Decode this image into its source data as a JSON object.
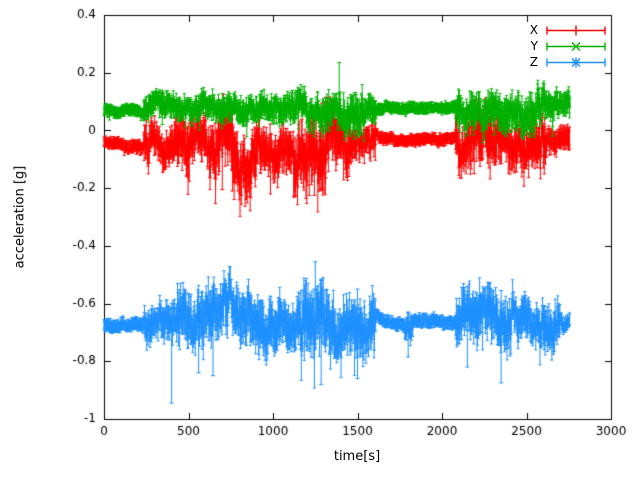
{
  "chart_data": {
    "type": "line",
    "title": "",
    "xlabel": "time[s]",
    "ylabel": "acceleration [g]",
    "xlim": [
      0,
      3000
    ],
    "ylim": [
      -1,
      0.4
    ],
    "xticks": [
      0,
      500,
      1000,
      1500,
      2000,
      2500,
      3000
    ],
    "xtick_labels": [
      "0",
      "500",
      "1000",
      "1500",
      "2000",
      "2500",
      "3000"
    ],
    "yticks": [
      -1,
      -0.8,
      -0.6,
      -0.4,
      -0.2,
      0,
      0.2,
      0.4
    ],
    "ytick_labels": [
      "-1",
      "-0.8",
      "-0.6",
      "-0.4",
      "-0.2",
      "0",
      "0.2",
      "0.4"
    ],
    "grid": false,
    "legend_position": "top-right",
    "plot_style": "errorbars",
    "envelope_format": "[t_start_s, t_end_s, mean_g, noise_amplitude_g]",
    "spike_format": "[t_s, low_g, high_g]",
    "series": [
      {
        "name": "X",
        "color": "#ff0000",
        "marker": "plus",
        "t_end": 2755,
        "envelope": [
          [
            0,
            120,
            -0.04,
            0.01
          ],
          [
            120,
            235,
            -0.052,
            0.012
          ],
          [
            235,
            420,
            -0.048,
            0.045
          ],
          [
            420,
            650,
            -0.055,
            0.06
          ],
          [
            650,
            900,
            -0.065,
            0.075
          ],
          [
            900,
            1120,
            -0.05,
            0.055
          ],
          [
            1120,
            1330,
            -0.075,
            0.085
          ],
          [
            1330,
            1460,
            -0.06,
            0.07
          ],
          [
            1460,
            1610,
            -0.045,
            0.04
          ],
          [
            1610,
            2080,
            -0.03,
            0.01
          ],
          [
            2080,
            2330,
            -0.05,
            0.065
          ],
          [
            2330,
            2620,
            -0.05,
            0.055
          ],
          [
            2620,
            2756,
            -0.038,
            0.028
          ]
        ],
        "spikes": [
          [
            490,
            -0.155,
            -0.01
          ],
          [
            700,
            -0.205,
            -0.03
          ],
          [
            760,
            -0.21,
            -0.04
          ],
          [
            1245,
            -0.225,
            -0.03
          ],
          [
            1290,
            -0.2,
            0.095
          ],
          [
            1312,
            -0.165,
            0.115
          ],
          [
            2190,
            -0.15,
            -0.01
          ],
          [
            2480,
            -0.145,
            0.0
          ],
          [
            2600,
            -0.13,
            0.01
          ]
        ]
      },
      {
        "name": "Y",
        "color": "#00b000",
        "marker": "cross",
        "t_end": 2758,
        "envelope": [
          [
            0,
            235,
            0.068,
            0.01
          ],
          [
            235,
            700,
            0.085,
            0.028
          ],
          [
            700,
            1120,
            0.082,
            0.032
          ],
          [
            1120,
            1380,
            0.075,
            0.038
          ],
          [
            1380,
            1540,
            0.05,
            0.05
          ],
          [
            1540,
            1610,
            0.07,
            0.03
          ],
          [
            1610,
            2080,
            0.08,
            0.01
          ],
          [
            2080,
            2330,
            0.075,
            0.042
          ],
          [
            2330,
            2620,
            0.07,
            0.045
          ],
          [
            2620,
            2758,
            0.085,
            0.03
          ]
        ],
        "spikes": [
          [
            345,
            0.02,
            0.125
          ],
          [
            1392,
            0.13,
            0.235
          ],
          [
            1455,
            -0.02,
            0.08
          ],
          [
            1480,
            -0.03,
            0.07
          ],
          [
            2310,
            -0.015,
            0.085
          ],
          [
            2525,
            -0.005,
            0.1
          ],
          [
            2655,
            -0.02,
            0.09
          ]
        ]
      },
      {
        "name": "Z",
        "color": "#1e90ff",
        "marker": "star",
        "t_end": 2755,
        "envelope": [
          [
            0,
            235,
            -0.672,
            0.012
          ],
          [
            235,
            430,
            -0.668,
            0.045
          ],
          [
            430,
            700,
            -0.66,
            0.065
          ],
          [
            700,
            950,
            -0.645,
            0.07
          ],
          [
            950,
            1150,
            -0.665,
            0.06
          ],
          [
            1150,
            1360,
            -0.675,
            0.085
          ],
          [
            1360,
            1610,
            -0.665,
            0.07
          ],
          [
            1610,
            1780,
            -0.67,
            0.012
          ],
          [
            1780,
            1830,
            -0.69,
            0.03
          ],
          [
            1830,
            2080,
            -0.668,
            0.012
          ],
          [
            2080,
            2420,
            -0.65,
            0.065
          ],
          [
            2420,
            2700,
            -0.655,
            0.055
          ],
          [
            2700,
            2756,
            -0.668,
            0.018
          ]
        ],
        "spikes": [
          [
            400,
            -0.945,
            -0.6
          ],
          [
            560,
            -0.84,
            -0.56
          ],
          [
            645,
            -0.85,
            -0.545
          ],
          [
            1250,
            -0.74,
            -0.455
          ],
          [
            1285,
            -0.88,
            -0.52
          ],
          [
            1500,
            -0.86,
            -0.55
          ],
          [
            1800,
            -0.785,
            -0.63
          ],
          [
            2150,
            -0.82,
            -0.54
          ],
          [
            2350,
            -0.875,
            -0.555
          ]
        ]
      }
    ]
  }
}
